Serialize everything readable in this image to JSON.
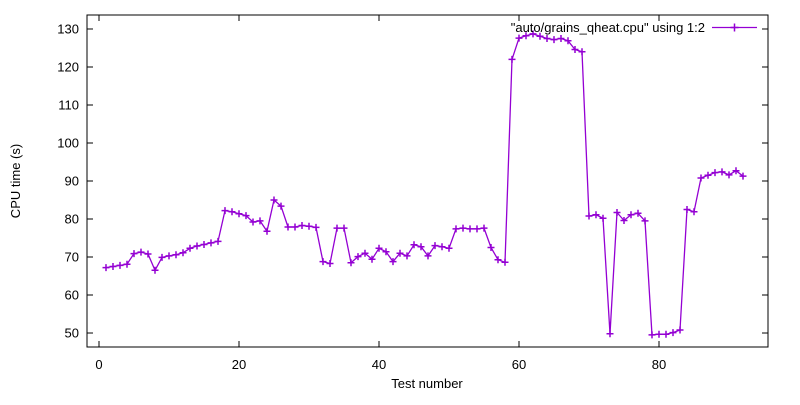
{
  "chart_data": {
    "type": "line",
    "title": "",
    "xlabel": "Test number",
    "ylabel": "CPU time (s)",
    "x_ticks": [
      0,
      20,
      40,
      60,
      80
    ],
    "y_ticks": [
      50,
      60,
      70,
      80,
      90,
      100,
      110,
      120,
      130
    ],
    "xlim": [
      -1.714,
      95.571
    ],
    "ylim": [
      46.32,
      133.68
    ],
    "grid": false,
    "legend_position": "top-right-inside",
    "line_color": "#9400D3",
    "marker": "plus",
    "series": [
      {
        "name": "\"auto/grains_qheat.cpu\" using 1:2",
        "color": "#9400D3",
        "x": [
          1,
          2,
          3,
          4,
          5,
          6,
          7,
          8,
          9,
          10,
          11,
          12,
          13,
          14,
          15,
          16,
          17,
          18,
          19,
          20,
          21,
          22,
          23,
          24,
          25,
          26,
          27,
          28,
          29,
          30,
          31,
          32,
          33,
          34,
          35,
          36,
          37,
          38,
          39,
          40,
          41,
          42,
          43,
          44,
          45,
          46,
          47,
          48,
          49,
          50,
          51,
          52,
          53,
          54,
          55,
          56,
          57,
          58,
          59,
          60,
          61,
          62,
          63,
          64,
          65,
          66,
          67,
          68,
          69,
          70,
          71,
          72,
          73,
          74,
          75,
          76,
          77,
          78,
          79,
          80,
          81,
          82,
          83,
          84,
          85,
          86,
          87,
          88,
          89,
          90,
          91,
          92
        ],
        "y": [
          67.2,
          67.5,
          67.8,
          68.1,
          70.9,
          71.3,
          70.8,
          66.5,
          69.9,
          70.3,
          70.6,
          71.1,
          72.3,
          72.9,
          73.3,
          73.7,
          74.1,
          82.2,
          81.9,
          81.4,
          80.9,
          79.2,
          79.5,
          76.8,
          85.0,
          83.4,
          77.9,
          77.9,
          78.3,
          78.1,
          77.8,
          68.8,
          68.3,
          77.6,
          77.6,
          68.5,
          70.1,
          71.0,
          69.4,
          72.3,
          71.4,
          68.8,
          71.0,
          70.3,
          73.2,
          72.7,
          70.3,
          73.0,
          72.7,
          72.3,
          77.4,
          77.6,
          77.4,
          77.4,
          77.6,
          72.5,
          69.3,
          68.6,
          122.0,
          127.6,
          128.2,
          128.7,
          128.1,
          127.5,
          127.2,
          127.5,
          126.9,
          124.6,
          124.0,
          80.8,
          81.1,
          80.2,
          49.8,
          81.7,
          79.6,
          81.1,
          81.5,
          79.5,
          49.5,
          49.7,
          49.7,
          50.1,
          50.8,
          82.5,
          81.9,
          90.8,
          91.5,
          92.2,
          92.4,
          91.6,
          92.7,
          91.3
        ]
      }
    ]
  },
  "legend": {
    "label": "\"auto/grains_qheat.cpu\" using 1:2"
  }
}
